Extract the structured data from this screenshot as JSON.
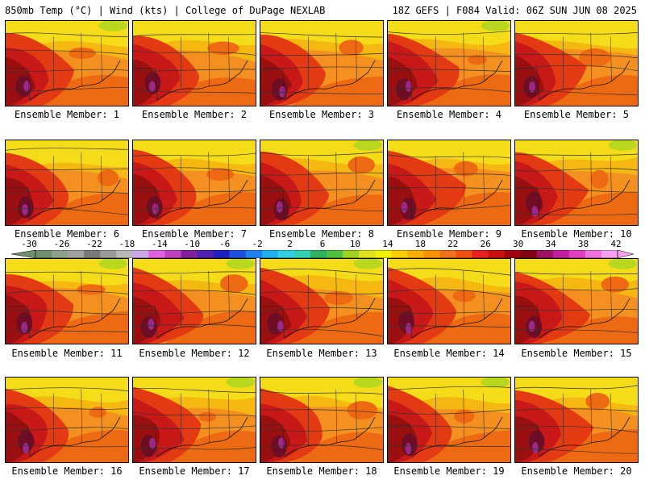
{
  "header": {
    "left_title": "850mb Temp (°C) | Wind (kts) | College of DuPage NEXLAB",
    "right_title": "18Z GEFS | F084 Valid: 06Z SUN JUN 08 2025"
  },
  "panels": [
    {
      "label": "Ensemble Member: 1"
    },
    {
      "label": "Ensemble Member: 2"
    },
    {
      "label": "Ensemble Member: 3"
    },
    {
      "label": "Ensemble Member: 4"
    },
    {
      "label": "Ensemble Member: 5"
    },
    {
      "label": "Ensemble Member: 6"
    },
    {
      "label": "Ensemble Member: 7"
    },
    {
      "label": "Ensemble Member: 8"
    },
    {
      "label": "Ensemble Member: 9"
    },
    {
      "label": "Ensemble Member: 10"
    },
    {
      "label": "Ensemble Member: 11"
    },
    {
      "label": "Ensemble Member: 12"
    },
    {
      "label": "Ensemble Member: 13"
    },
    {
      "label": "Ensemble Member: 14"
    },
    {
      "label": "Ensemble Member: 15"
    },
    {
      "label": "Ensemble Member: 16"
    },
    {
      "label": "Ensemble Member: 17"
    },
    {
      "label": "Ensemble Member: 18"
    },
    {
      "label": "Ensemble Member: 19"
    },
    {
      "label": "Ensemble Member: 20"
    }
  ],
  "colorbar": {
    "ticks": [
      "-30",
      "-26",
      "-22",
      "-18",
      "-14",
      "-10",
      "-6",
      "-2",
      "2",
      "6",
      "10",
      "14",
      "18",
      "22",
      "26",
      "30",
      "34",
      "38",
      "42"
    ],
    "colors": [
      "#6f8f6f",
      "#8aa08a",
      "#a0a0a0",
      "#7a7a7a",
      "#9a9a9a",
      "#b8b8b8",
      "#c8a8e8",
      "#e060e0",
      "#c040c0",
      "#8020a0",
      "#5020b0",
      "#2020c0",
      "#2050e0",
      "#2080f0",
      "#20b0f0",
      "#30d0e0",
      "#30d0b0",
      "#30b060",
      "#50c040",
      "#a0d020",
      "#e0e020",
      "#f0f000",
      "#f8d000",
      "#f8b000",
      "#f89000",
      "#f07020",
      "#f05010",
      "#e82020",
      "#c81010",
      "#a00010",
      "#800010",
      "#a01060",
      "#c020a0",
      "#e040c0",
      "#f070e0",
      "#f8a0f0"
    ]
  },
  "map_colors": {
    "yellow": "#f4dc18",
    "gold": "#f5b810",
    "orange": "#f39020",
    "dark_orange": "#ee6a12",
    "red": "#e43a14",
    "crimson": "#c81818",
    "dark_red": "#9a1010",
    "maroon": "#6e0e24",
    "purple": "#9a2a8a",
    "green": "#b8d820"
  }
}
